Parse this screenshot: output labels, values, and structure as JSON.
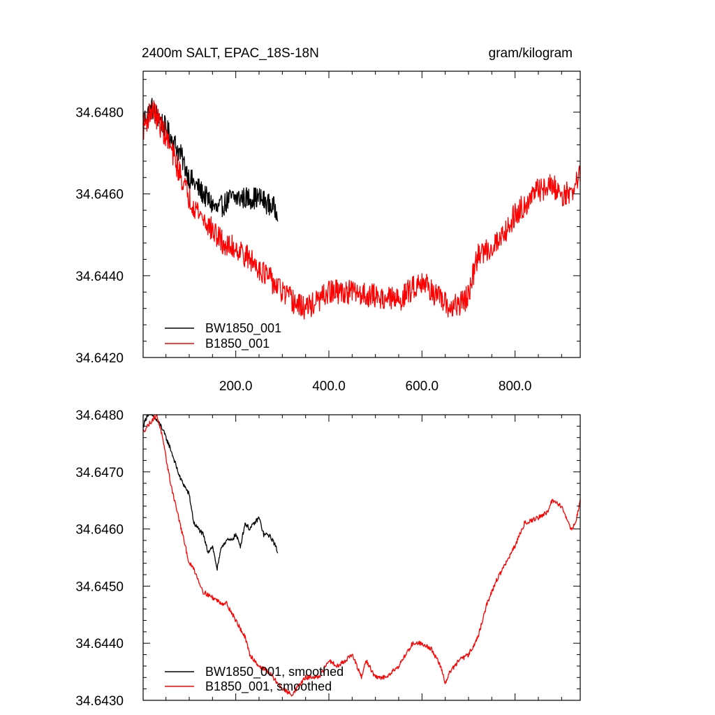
{
  "figure": {
    "title_left": "2400m SALT, EPAC_18S-18N",
    "title_right": "gram/kilogram"
  },
  "chart_data": [
    {
      "type": "line",
      "title": "2400m SALT, EPAC_18S-18N",
      "units": "gram/kilogram",
      "xlim": [
        1,
        940
      ],
      "ylim": [
        34.642,
        34.649
      ],
      "x_ticks": [
        200,
        400,
        600,
        800
      ],
      "x_tick_labels": [
        "200.0",
        "400.0",
        "600.0",
        "800.0"
      ],
      "y_ticks": [
        34.642,
        34.644,
        34.646,
        34.648
      ],
      "y_tick_labels": [
        "34.6420",
        "34.6440",
        "34.6460",
        "34.6480"
      ],
      "legend_position": "bottom-left",
      "grid": false,
      "series": [
        {
          "name": "BW1850_001",
          "color": "#000000",
          "x_end": 290,
          "noise": 0.00055,
          "x": [
            1,
            20,
            50,
            80,
            100,
            130,
            160,
            190,
            220,
            250,
            290
          ],
          "values": [
            34.6478,
            34.6481,
            34.6476,
            34.647,
            34.6464,
            34.646,
            34.6456,
            34.6459,
            34.6459,
            34.6459,
            34.6456
          ]
        },
        {
          "name": "B1850_001",
          "color": "#ff0000",
          "x_end": 940,
          "noise": 0.0006,
          "x": [
            1,
            20,
            50,
            80,
            100,
            130,
            150,
            180,
            200,
            250,
            300,
            330,
            350,
            380,
            400,
            450,
            500,
            550,
            600,
            640,
            660,
            680,
            700,
            720,
            750,
            780,
            800,
            850,
            880,
            900,
            920,
            940
          ],
          "values": [
            34.6476,
            34.6481,
            34.6474,
            34.6465,
            34.6459,
            34.6454,
            34.6451,
            34.6447,
            34.6447,
            34.6442,
            34.6436,
            34.6433,
            34.6432,
            34.6434,
            34.6436,
            34.6436,
            34.6435,
            34.6434,
            34.6439,
            34.6434,
            34.6432,
            34.6433,
            34.6435,
            34.6445,
            34.6447,
            34.6451,
            34.6455,
            34.6461,
            34.6462,
            34.646,
            34.646,
            34.6465
          ]
        }
      ]
    },
    {
      "type": "line",
      "xlim": [
        1,
        940
      ],
      "ylim": [
        34.643,
        34.648
      ],
      "x_ticks": [
        200,
        400,
        600,
        800
      ],
      "x_tick_labels": [],
      "y_ticks": [
        34.643,
        34.644,
        34.645,
        34.646,
        34.647,
        34.648
      ],
      "y_tick_labels": [
        "34.6430",
        "34.6440",
        "34.6450",
        "34.6460",
        "34.6470",
        "34.6480"
      ],
      "legend_position": "bottom-left",
      "grid": false,
      "series": [
        {
          "name": "BW1850_001, smoothed",
          "color": "#000000",
          "x_end": 290,
          "noise": 8e-05,
          "x": [
            1,
            10,
            20,
            40,
            60,
            80,
            100,
            110,
            120,
            130,
            140,
            150,
            160,
            170,
            180,
            190,
            200,
            210,
            220,
            230,
            240,
            250,
            260,
            270,
            280,
            290
          ],
          "values": [
            34.6478,
            34.648,
            34.648,
            34.6478,
            34.6474,
            34.6469,
            34.6466,
            34.6461,
            34.646,
            34.6459,
            34.6456,
            34.6457,
            34.6453,
            34.6457,
            34.6458,
            34.6458,
            34.6459,
            34.6457,
            34.6461,
            34.646,
            34.6461,
            34.6462,
            34.6459,
            34.6459,
            34.6458,
            34.6456
          ]
        },
        {
          "name": "B1850_001, smoothed",
          "color": "#ff0000",
          "x_end": 940,
          "noise": 8e-05,
          "x": [
            1,
            10,
            20,
            30,
            40,
            60,
            80,
            100,
            110,
            130,
            150,
            170,
            180,
            200,
            220,
            230,
            250,
            270,
            300,
            320,
            330,
            350,
            380,
            400,
            420,
            450,
            470,
            480,
            500,
            520,
            550,
            580,
            600,
            620,
            640,
            650,
            660,
            680,
            700,
            720,
            740,
            760,
            780,
            800,
            820,
            850,
            870,
            880,
            900,
            920,
            930,
            940
          ],
          "values": [
            34.6477,
            34.6478,
            34.6479,
            34.648,
            34.6477,
            34.6468,
            34.6461,
            34.6454,
            34.6453,
            34.6449,
            34.6448,
            34.6447,
            34.6447,
            34.6444,
            34.6441,
            34.6438,
            34.6436,
            34.6435,
            34.6432,
            34.6431,
            34.6432,
            34.6434,
            34.6434,
            34.6437,
            34.6436,
            34.6438,
            34.6434,
            34.6437,
            34.6434,
            34.6434,
            34.6436,
            34.644,
            34.644,
            34.6439,
            34.6436,
            34.6433,
            34.6435,
            34.6437,
            34.6438,
            34.6441,
            34.6447,
            34.6451,
            34.6454,
            34.6457,
            34.6461,
            34.6462,
            34.6463,
            34.6465,
            34.6464,
            34.646,
            34.6461,
            34.6465
          ]
        }
      ]
    }
  ]
}
